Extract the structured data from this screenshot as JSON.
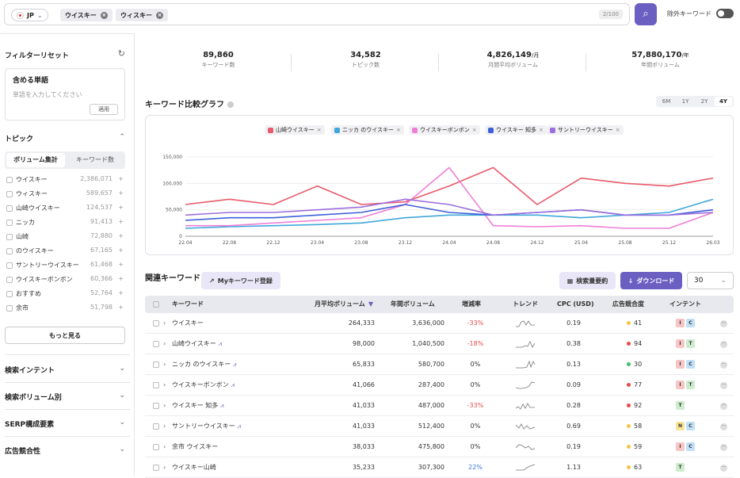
{
  "search": {
    "country": "JP",
    "chips": [
      "ウイスキー",
      "ウィスキー"
    ],
    "count": "2/100",
    "exclude_label": "除外キーワード"
  },
  "sidebar": {
    "reset": "フィルターリセット",
    "include_title": "含める単語",
    "include_placeholder": "単語を入力してください",
    "apply": "適用",
    "topic_title": "トピック",
    "seg_on": "ボリューム集計",
    "seg_off": "キーワード数",
    "topics": [
      {
        "label": "ウイスキー",
        "value": "2,386,071"
      },
      {
        "label": "ウィスキー",
        "value": "589,657"
      },
      {
        "label": "山崎ウイスキー",
        "value": "124,537"
      },
      {
        "label": "ニッカ",
        "value": "91,413"
      },
      {
        "label": "山崎",
        "value": "72,880"
      },
      {
        "label": "のウイスキー",
        "value": "67,165"
      },
      {
        "label": "サントリーウイスキー",
        "value": "61,468"
      },
      {
        "label": "ウイスキーボンボン",
        "value": "60,366"
      },
      {
        "label": "おすすめ",
        "value": "52,764"
      },
      {
        "label": "余市",
        "value": "51,798"
      }
    ],
    "more": "もっと見る",
    "sections": [
      "検索インテント",
      "検索ボリューム別",
      "SERP構成要素",
      "広告競合性"
    ]
  },
  "stats": [
    {
      "n": "89,860",
      "unit": "",
      "l": "キーワード数"
    },
    {
      "n": "34,582",
      "unit": "",
      "l": "トピック数"
    },
    {
      "n": "4,826,149",
      "unit": "/月",
      "l": "月間平均ボリューム"
    },
    {
      "n": "57,880,170",
      "unit": "/年",
      "l": "年間ボリューム"
    }
  ],
  "chart_title": "キーワード比較グラフ",
  "ranges": [
    "6M",
    "1Y",
    "2Y",
    "4Y"
  ],
  "chart_data": {
    "type": "line",
    "x": [
      "22.04",
      "22.08",
      "22.12",
      "23.04",
      "23.08",
      "23.12",
      "24.04",
      "24.08",
      "24.12",
      "25.04",
      "25.08",
      "25.12",
      "26.03"
    ],
    "ylim": [
      0,
      150000
    ],
    "yticks": [
      "0",
      "50,000",
      "100,000",
      "150,000"
    ],
    "series": [
      {
        "name": "山崎ウイスキー",
        "color": "#e85a6a",
        "values": [
          60000,
          70000,
          60000,
          95000,
          60000,
          65000,
          95000,
          130000,
          60000,
          110000,
          100000,
          95000,
          110000
        ]
      },
      {
        "name": "ニッカ のウイスキー",
        "color": "#3fa7dc",
        "values": [
          15000,
          18000,
          20000,
          22000,
          25000,
          35000,
          40000,
          40000,
          40000,
          35000,
          40000,
          45000,
          70000
        ]
      },
      {
        "name": "ウイスキーボンボン",
        "color": "#ef7fd6",
        "values": [
          20000,
          20000,
          25000,
          30000,
          35000,
          60000,
          130000,
          20000,
          18000,
          20000,
          15000,
          15000,
          45000
        ]
      },
      {
        "name": "ウイスキー 知多",
        "color": "#3d5fd8",
        "values": [
          30000,
          35000,
          35000,
          40000,
          45000,
          60000,
          45000,
          40000,
          45000,
          50000,
          40000,
          40000,
          50000
        ]
      },
      {
        "name": "サントリーウイスキー",
        "color": "#9c6fdc",
        "values": [
          40000,
          45000,
          45000,
          50000,
          55000,
          70000,
          60000,
          40000,
          45000,
          50000,
          40000,
          40000,
          45000
        ]
      }
    ]
  },
  "related": {
    "title": "関連キーワード",
    "register": "Myキーワード登録",
    "summary": "検索量要約",
    "download": "ダウンロード",
    "per_page": "30",
    "headers": [
      "キーワード",
      "月平均ボリューム",
      "年間ボリューム",
      "増減率",
      "トレンド",
      "CPC (USD)",
      "広告競合度",
      "インテント"
    ],
    "rows": [
      {
        "kw": "ウイスキー",
        "m": "264,333",
        "y": "3,636,000",
        "r": "-33%",
        "cpc": "0.19",
        "comp": "41",
        "cc": "#f5c542",
        "tags": [
          "I",
          "C"
        ],
        "icon": false
      },
      {
        "kw": "山崎ウイスキー",
        "m": "98,000",
        "y": "1,040,500",
        "r": "-18%",
        "cpc": "0.38",
        "comp": "94",
        "cc": "#e54b4b",
        "tags": [
          "I",
          "T"
        ],
        "icon": true
      },
      {
        "kw": "ニッカ のウイスキー",
        "m": "65,833",
        "y": "580,700",
        "r": "0%",
        "cpc": "0.13",
        "comp": "30",
        "cc": "#3fbf6a",
        "tags": [
          "I",
          "C"
        ],
        "icon": true
      },
      {
        "kw": "ウイスキーボンボン",
        "m": "41,066",
        "y": "287,400",
        "r": "0%",
        "cpc": "0.09",
        "comp": "77",
        "cc": "#e54b4b",
        "tags": [
          "I",
          "T"
        ],
        "icon": true
      },
      {
        "kw": "ウイスキー 知多",
        "m": "41,033",
        "y": "487,000",
        "r": "-33%",
        "cpc": "0.28",
        "comp": "92",
        "cc": "#e54b4b",
        "tags": [
          "T"
        ],
        "icon": true
      },
      {
        "kw": "サントリーウイスキー",
        "m": "41,033",
        "y": "512,400",
        "r": "0%",
        "cpc": "0.69",
        "comp": "58",
        "cc": "#f5c542",
        "tags": [
          "N",
          "C"
        ],
        "icon": true
      },
      {
        "kw": "余市 ウイスキー",
        "m": "38,033",
        "y": "475,800",
        "r": "0%",
        "cpc": "0.19",
        "comp": "59",
        "cc": "#f5c542",
        "tags": [
          "I",
          "C"
        ],
        "icon": false
      },
      {
        "kw": "ウイスキー山崎",
        "m": "35,233",
        "y": "307,300",
        "r": "22%",
        "cpc": "1.13",
        "comp": "63",
        "cc": "#f5c542",
        "tags": [
          "T"
        ],
        "icon": false
      }
    ]
  }
}
